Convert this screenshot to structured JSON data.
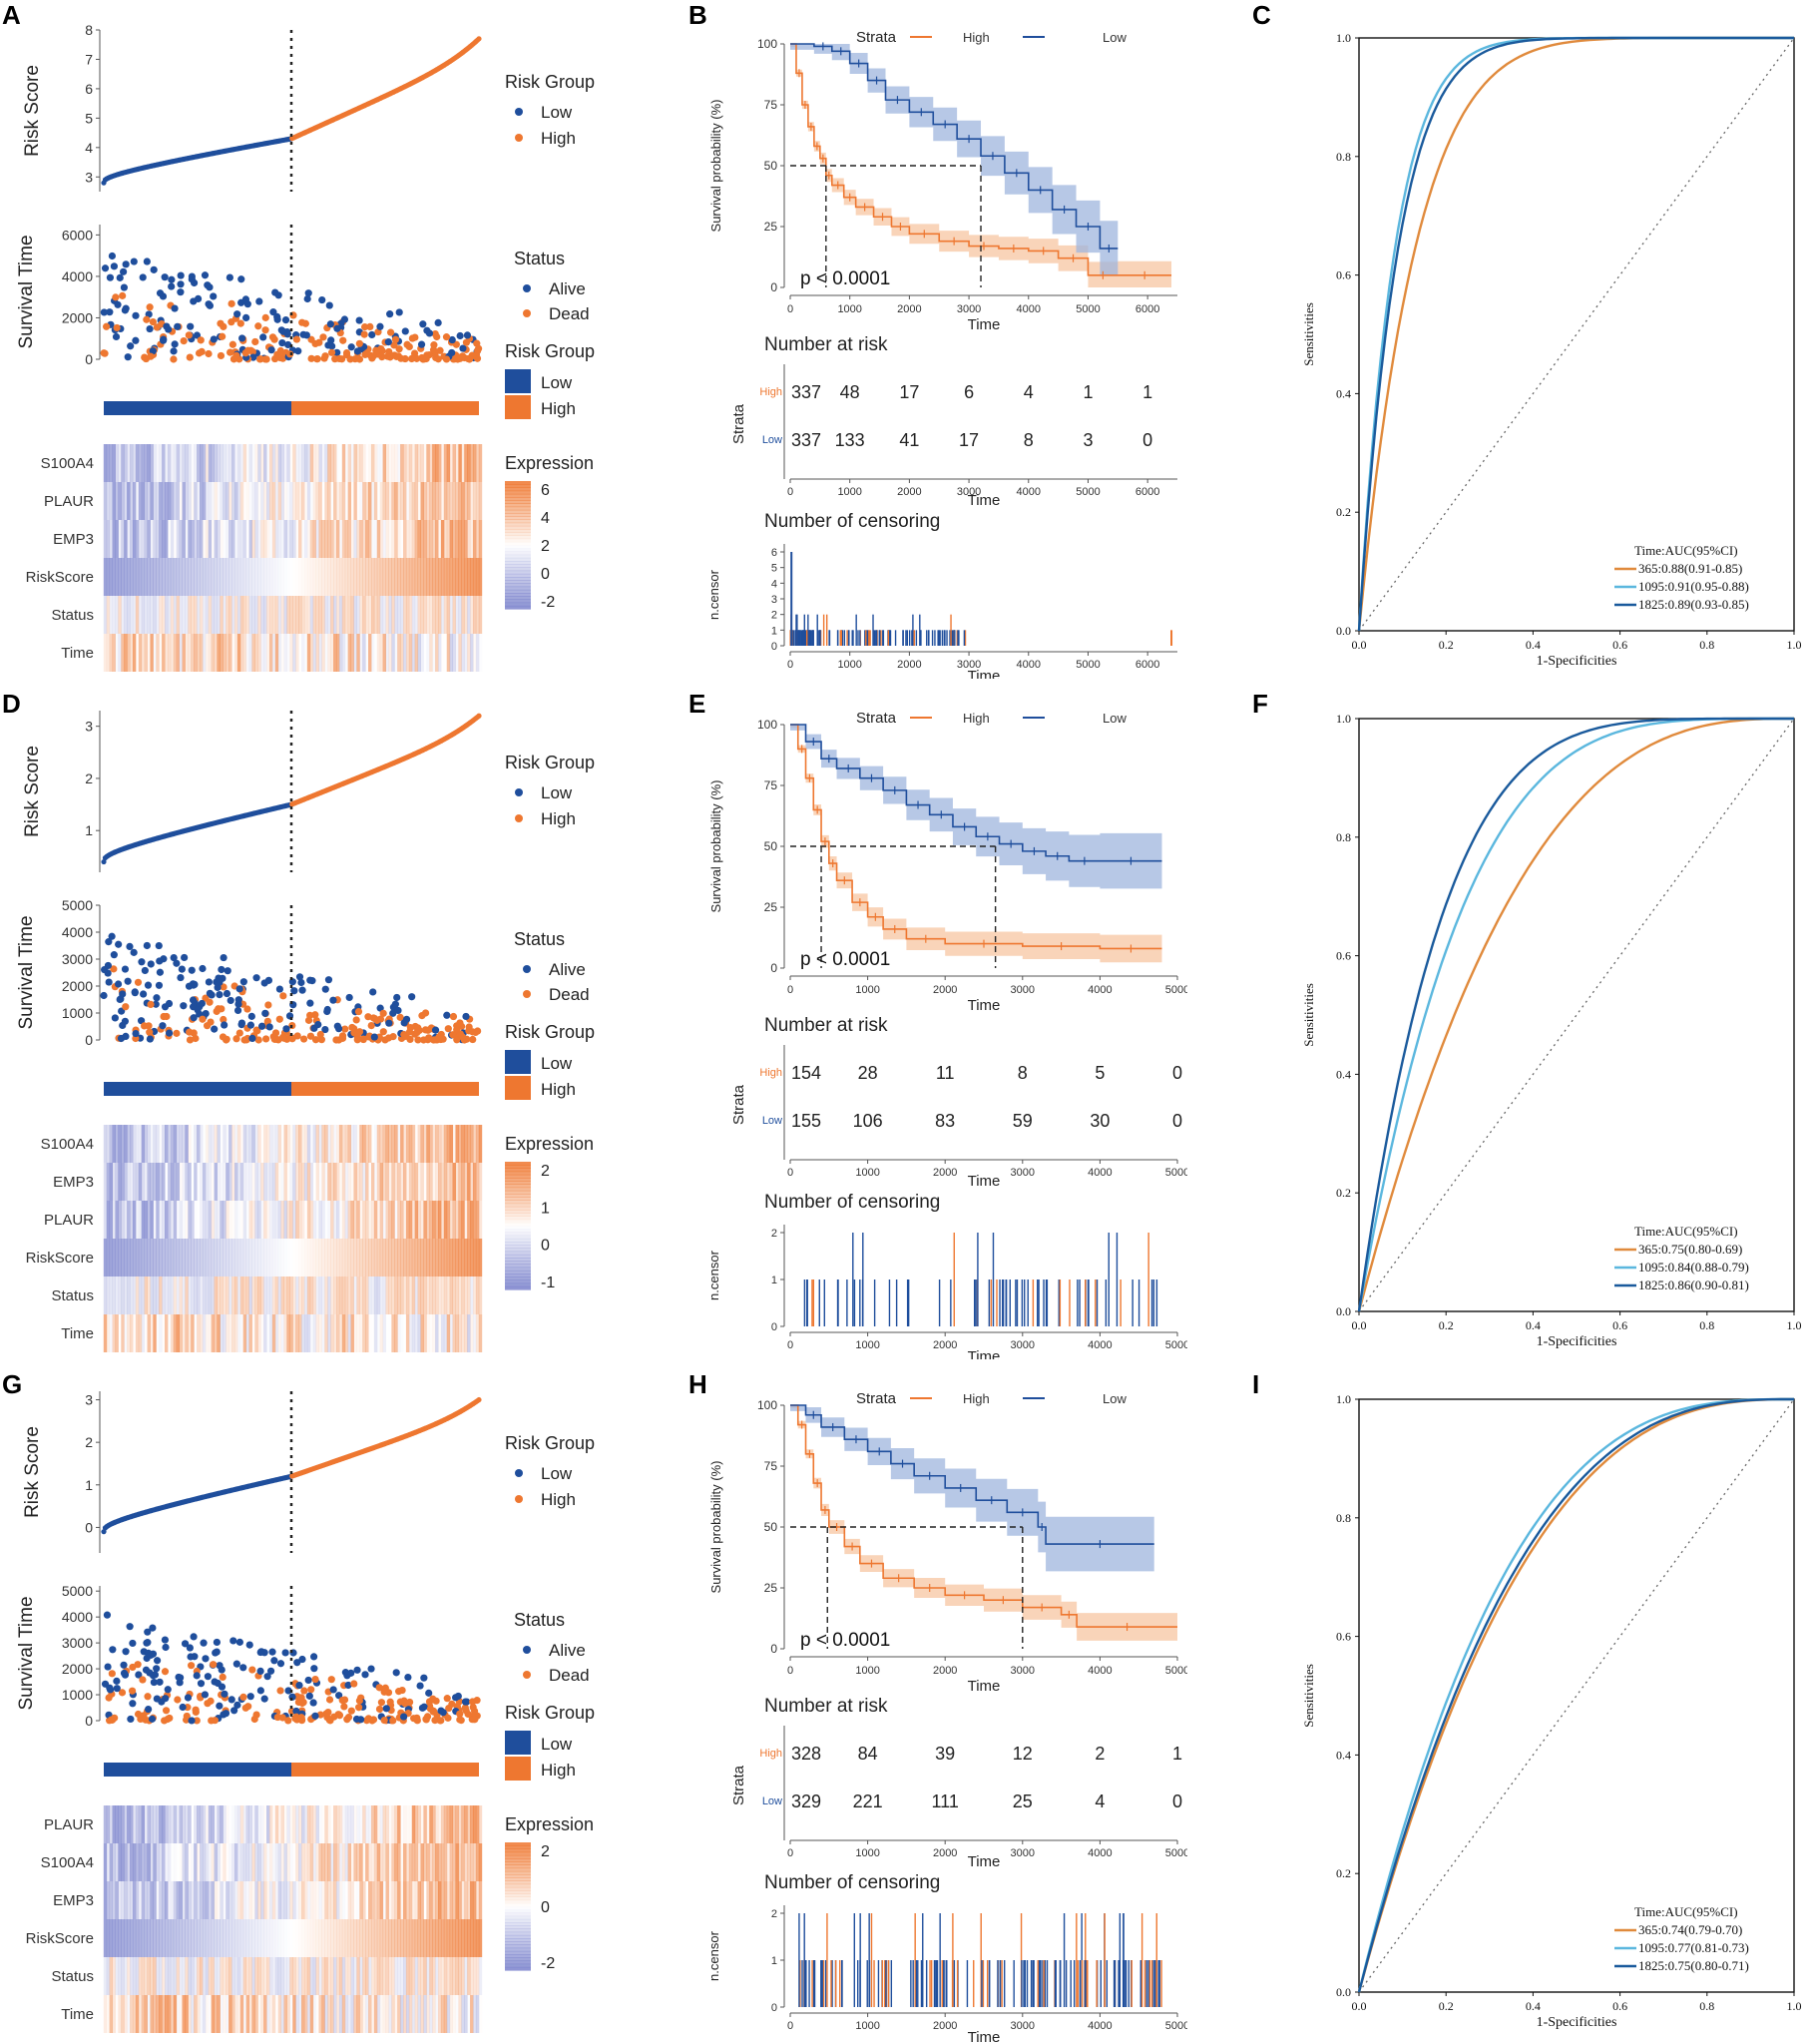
{
  "colors": {
    "low": "#1f4e9c",
    "high": "#ee7730",
    "low_band": "#9fb6dd",
    "high_band": "#f7c6a2",
    "auc365": "#e08a3c",
    "auc1095": "#5bb7de",
    "auc1825": "#1a5a9c",
    "heat_low": "#7b83cc",
    "heat_high": "#ee7730"
  },
  "risk_panel": {
    "risk_score_ylabel": "Risk Score",
    "survival_ylabel": "Survival Time",
    "legend_risk_title": "Risk Group",
    "legend_low": "Low",
    "legend_high": "High",
    "legend_status_title": "Status",
    "legend_alive": "Alive",
    "legend_dead": "Dead",
    "legend_expression_title": "Expression"
  },
  "km_text": {
    "strata_title": "Strata",
    "strata_high": "High",
    "strata_low": "Low",
    "ylabel": "Survival probability (%)",
    "xlabel": "Time",
    "pvalue": "p < 0.0001",
    "risk_table_title": "Number at risk",
    "risk_table_ylabel": "Strata",
    "risk_row_high": "High",
    "risk_row_low": "Low",
    "censor_title": "Number of censoring",
    "censor_ylabel": "n.censor"
  },
  "roc_text": {
    "ylabel": "Sensitivities",
    "xlabel": "1-Specificities",
    "legend_title": "Time:AUC(95%CI)"
  },
  "chart_data": [
    {
      "label": "A",
      "type": "scatter",
      "risk_score": {
        "ylim": [
          2.5,
          8
        ],
        "yticks": [
          "3",
          "4",
          "5",
          "6",
          "7",
          "8"
        ],
        "start": 2.8,
        "mid": 4.3,
        "end": 7.7
      },
      "survival": {
        "ylim": [
          0,
          6500
        ],
        "yticks": [
          "0",
          "2000",
          "4000",
          "6000"
        ]
      },
      "expression_ticks": [
        "6",
        "4",
        "2",
        "0",
        "-2"
      ],
      "heatmap_rows": [
        "S100A4",
        "PLAUR",
        "EMP3",
        "RiskScore",
        "Status",
        "Time"
      ]
    },
    {
      "label": "B",
      "type": "line",
      "x_ticks": [
        "0",
        "1000",
        "2000",
        "3000",
        "4000",
        "5000",
        "6000"
      ],
      "xlim": [
        0,
        6500
      ],
      "y_ticks": [
        "0",
        "25",
        "50",
        "75",
        "100"
      ],
      "high_curve": [
        [
          0,
          100
        ],
        [
          100,
          88
        ],
        [
          200,
          75
        ],
        [
          300,
          66
        ],
        [
          400,
          58
        ],
        [
          500,
          53
        ],
        [
          600,
          46
        ],
        [
          700,
          42
        ],
        [
          900,
          37
        ],
        [
          1100,
          33
        ],
        [
          1400,
          29
        ],
        [
          1700,
          25
        ],
        [
          2000,
          22
        ],
        [
          2500,
          19
        ],
        [
          3000,
          17
        ],
        [
          3500,
          16
        ],
        [
          4000,
          15
        ],
        [
          4500,
          12
        ],
        [
          5000,
          5
        ],
        [
          5500,
          5
        ],
        [
          6400,
          5
        ]
      ],
      "low_curve": [
        [
          0,
          100
        ],
        [
          400,
          99
        ],
        [
          700,
          97
        ],
        [
          1000,
          92
        ],
        [
          1300,
          85
        ],
        [
          1600,
          77
        ],
        [
          2000,
          72
        ],
        [
          2400,
          67
        ],
        [
          2800,
          61
        ],
        [
          3200,
          54
        ],
        [
          3600,
          47
        ],
        [
          4000,
          40
        ],
        [
          4400,
          32
        ],
        [
          4800,
          25
        ],
        [
          5200,
          16
        ],
        [
          5500,
          16
        ]
      ],
      "median_high": 600,
      "median_low": 3200,
      "risk_table": {
        "times": [
          "0",
          "1000",
          "2000",
          "3000",
          "4000",
          "5000",
          "6000"
        ],
        "high": [
          "337",
          "48",
          "17",
          "6",
          "4",
          "1",
          "1"
        ],
        "low": [
          "337",
          "133",
          "41",
          "17",
          "8",
          "3",
          "0"
        ]
      },
      "censor_yticks": [
        "0",
        "1",
        "2",
        "3",
        "4",
        "5",
        "6"
      ]
    },
    {
      "label": "C",
      "type": "line",
      "ticks": [
        "0.0",
        "0.2",
        "0.4",
        "0.6",
        "0.8",
        "1.0"
      ],
      "auc": [
        "365:0.88(0.91-0.85)",
        "1095:0.91(0.95-0.88)",
        "1825:0.89(0.93-0.85)"
      ]
    },
    {
      "label": "D",
      "type": "scatter",
      "risk_score": {
        "ylim": [
          0.2,
          3.3
        ],
        "yticks": [
          "1",
          "2",
          "3"
        ],
        "start": 0.4,
        "mid": 1.5,
        "end": 3.2
      },
      "survival": {
        "ylim": [
          0,
          5000
        ],
        "yticks": [
          "0",
          "1000",
          "2000",
          "3000",
          "4000",
          "5000"
        ]
      },
      "expression_ticks": [
        "2",
        "1",
        "0",
        "-1"
      ],
      "heatmap_rows": [
        "S100A4",
        "EMP3",
        "PLAUR",
        "RiskScore",
        "Status",
        "Time"
      ]
    },
    {
      "label": "E",
      "type": "line",
      "x_ticks": [
        "0",
        "1000",
        "2000",
        "3000",
        "4000",
        "5000"
      ],
      "xlim": [
        0,
        5000
      ],
      "y_ticks": [
        "0",
        "25",
        "50",
        "75",
        "100"
      ],
      "high_curve": [
        [
          0,
          100
        ],
        [
          100,
          90
        ],
        [
          200,
          78
        ],
        [
          300,
          65
        ],
        [
          400,
          52
        ],
        [
          500,
          43
        ],
        [
          600,
          36
        ],
        [
          800,
          27
        ],
        [
          1000,
          21
        ],
        [
          1200,
          16
        ],
        [
          1500,
          12
        ],
        [
          2000,
          10
        ],
        [
          3000,
          9
        ],
        [
          4000,
          8
        ],
        [
          4800,
          8
        ]
      ],
      "low_curve": [
        [
          0,
          100
        ],
        [
          200,
          93
        ],
        [
          400,
          86
        ],
        [
          600,
          82
        ],
        [
          900,
          78
        ],
        [
          1200,
          73
        ],
        [
          1500,
          67
        ],
        [
          1800,
          63
        ],
        [
          2100,
          58
        ],
        [
          2400,
          54
        ],
        [
          2700,
          51
        ],
        [
          3000,
          48
        ],
        [
          3300,
          46
        ],
        [
          3600,
          44
        ],
        [
          4000,
          44
        ],
        [
          4800,
          44
        ]
      ],
      "median_high": 400,
      "median_low": 2650,
      "risk_table": {
        "times": [
          "0",
          "1000",
          "2000",
          "3000",
          "4000",
          "5000"
        ],
        "high": [
          "154",
          "28",
          "11",
          "8",
          "5",
          "0"
        ],
        "low": [
          "155",
          "106",
          "83",
          "59",
          "30",
          "0"
        ]
      },
      "censor_yticks": [
        "0",
        "1",
        "2"
      ]
    },
    {
      "label": "F",
      "type": "line",
      "ticks": [
        "0.0",
        "0.2",
        "0.4",
        "0.6",
        "0.8",
        "1.0"
      ],
      "auc": [
        "365:0.75(0.80-0.69)",
        "1095:0.84(0.88-0.79)",
        "1825:0.86(0.90-0.81)"
      ]
    },
    {
      "label": "G",
      "type": "scatter",
      "risk_score": {
        "ylim": [
          -0.6,
          3.2
        ],
        "yticks": [
          "0",
          "1",
          "2",
          "3"
        ],
        "start": -0.1,
        "mid": 1.2,
        "end": 3.0
      },
      "survival": {
        "ylim": [
          0,
          5200
        ],
        "yticks": [
          "0",
          "1000",
          "2000",
          "3000",
          "4000",
          "5000"
        ]
      },
      "expression_ticks": [
        "2",
        "0",
        "-2"
      ],
      "heatmap_rows": [
        "PLAUR",
        "S100A4",
        "EMP3",
        "RiskScore",
        "Status",
        "Time"
      ]
    },
    {
      "label": "H",
      "type": "line",
      "x_ticks": [
        "0",
        "1000",
        "2000",
        "3000",
        "4000",
        "5000"
      ],
      "xlim": [
        0,
        5000
      ],
      "y_ticks": [
        "0",
        "25",
        "50",
        "75",
        "100"
      ],
      "high_curve": [
        [
          0,
          100
        ],
        [
          100,
          92
        ],
        [
          200,
          80
        ],
        [
          300,
          68
        ],
        [
          400,
          57
        ],
        [
          500,
          50
        ],
        [
          700,
          42
        ],
        [
          900,
          35
        ],
        [
          1200,
          29
        ],
        [
          1600,
          25
        ],
        [
          2000,
          22
        ],
        [
          2500,
          20
        ],
        [
          3000,
          17
        ],
        [
          3500,
          14
        ],
        [
          3700,
          9
        ],
        [
          5000,
          9
        ]
      ],
      "low_curve": [
        [
          0,
          100
        ],
        [
          200,
          96
        ],
        [
          400,
          91
        ],
        [
          700,
          86
        ],
        [
          1000,
          81
        ],
        [
          1300,
          76
        ],
        [
          1600,
          71
        ],
        [
          2000,
          66
        ],
        [
          2400,
          61
        ],
        [
          2800,
          56
        ],
        [
          3200,
          50
        ],
        [
          3300,
          43
        ],
        [
          4700,
          43
        ]
      ],
      "median_high": 480,
      "median_low": 3000,
      "risk_table": {
        "times": [
          "0",
          "1000",
          "2000",
          "3000",
          "4000",
          "5000"
        ],
        "high": [
          "328",
          "84",
          "39",
          "12",
          "2",
          "1"
        ],
        "low": [
          "329",
          "221",
          "111",
          "25",
          "4",
          "0"
        ]
      },
      "censor_yticks": [
        "0",
        "1",
        "2"
      ]
    },
    {
      "label": "I",
      "type": "line",
      "ticks": [
        "0.0",
        "0.2",
        "0.4",
        "0.6",
        "0.8",
        "1.0"
      ],
      "auc": [
        "365:0.74(0.79-0.70)",
        "1095:0.77(0.81-0.73)",
        "1825:0.75(0.80-0.71)"
      ]
    }
  ]
}
